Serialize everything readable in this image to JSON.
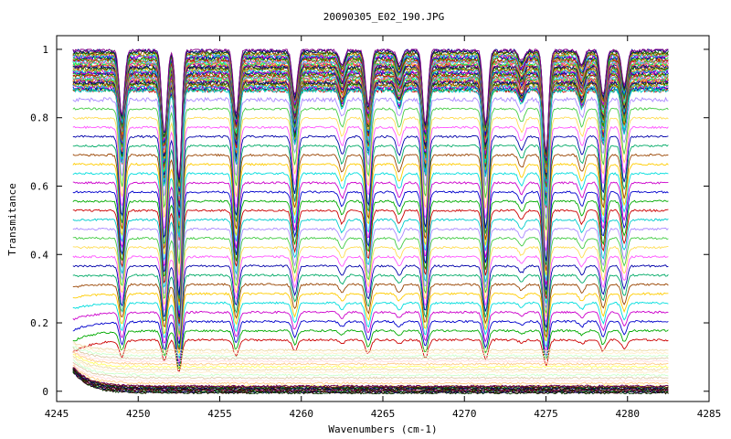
{
  "chart_data": {
    "type": "line",
    "title": "20090305_E02_190.JPG",
    "xlabel": "Wavenumbers (cm-1)",
    "ylabel": "Transmitance",
    "xlim": [
      4245,
      4285
    ],
    "ylim": [
      -0.03,
      1.04
    ],
    "x_range_data": [
      4246,
      4282.5
    ],
    "xticks": [
      4245,
      4250,
      4255,
      4260,
      4265,
      4270,
      4275,
      4280,
      4285
    ],
    "xtick_labels": [
      "4245",
      "4250",
      "4255",
      "4260",
      "4265",
      "4270",
      "4275",
      "4280",
      "4285"
    ],
    "yticks": [
      0,
      0.2,
      0.4,
      0.6,
      0.8,
      1
    ],
    "ytick_labels": [
      "0",
      "0.2",
      "0.4",
      "0.6",
      "0.8",
      "1"
    ],
    "grid": false,
    "legend": "none",
    "absorption_lines": [
      {
        "x": 4249.0,
        "depth": 0.35
      },
      {
        "x": 4251.6,
        "depth": 0.45
      },
      {
        "x": 4252.5,
        "depth": 0.7
      },
      {
        "x": 4256.0,
        "depth": 0.35
      },
      {
        "x": 4259.6,
        "depth": 0.25
      },
      {
        "x": 4262.5,
        "depth": 0.08
      },
      {
        "x": 4264.1,
        "depth": 0.3
      },
      {
        "x": 4266.0,
        "depth": 0.08
      },
      {
        "x": 4267.6,
        "depth": 0.4
      },
      {
        "x": 4271.3,
        "depth": 0.4
      },
      {
        "x": 4273.5,
        "depth": 0.06
      },
      {
        "x": 4275.0,
        "depth": 0.55
      },
      {
        "x": 4277.2,
        "depth": 0.08
      },
      {
        "x": 4278.5,
        "depth": 0.25
      },
      {
        "x": 4279.8,
        "depth": 0.2
      }
    ],
    "series_groups": [
      {
        "name": "",
        "count": 40,
        "baseline_start": 0.88,
        "baseline_end": 0.998,
        "color_cycle": [
          "#cc0000",
          "#00aa00",
          "#0000cc",
          "#cc00cc",
          "#00cccc",
          "#ccaa00",
          "#884400",
          "#006600",
          "#000088",
          "#880088",
          "#ff8800",
          "#00ff66",
          "#ff4499",
          "#44aaff",
          "#888800"
        ]
      },
      {
        "name": "",
        "count": 28,
        "baseline_start": 0.15,
        "baseline_end": 0.88,
        "color_cycle": [
          "#cc0000",
          "#00aa00",
          "#0000cc",
          "#cc00cc",
          "#00dddd",
          "#ffcc00",
          "#994400",
          "#00aa66",
          "#0000aa",
          "#ff55ff",
          "#ffdd55",
          "#44cc44",
          "#aa88ff",
          "#00cccc"
        ]
      },
      {
        "name": "",
        "count": 14,
        "baseline_start": 0.015,
        "baseline_end": 0.12,
        "color_cycle": [
          "#ffff66",
          "#ffcc88",
          "#ffdddd",
          "#ddccaa",
          "#ccffcc",
          "#ffeecc",
          "#eeddaa"
        ]
      },
      {
        "name": "",
        "count": 12,
        "baseline_start": -0.005,
        "baseline_end": 0.015,
        "color_cycle": [
          "#003300",
          "#330000",
          "#000066",
          "#006600",
          "#660000",
          "#660066"
        ]
      }
    ]
  }
}
